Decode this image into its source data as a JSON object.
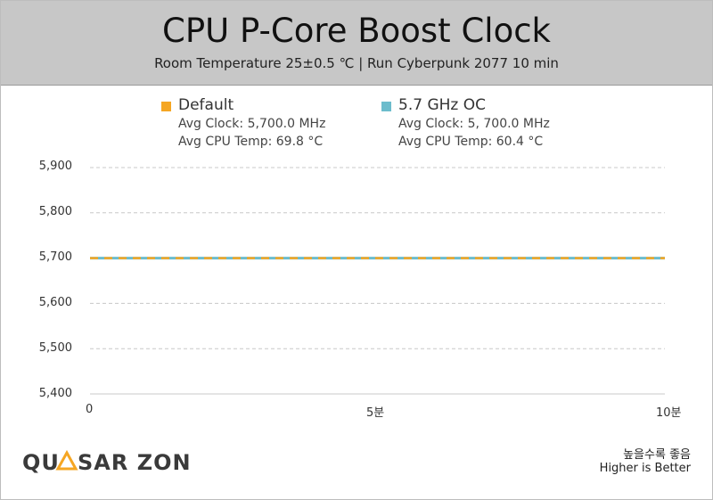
{
  "chart_data": {
    "type": "line",
    "title": "CPU P-Core Boost Clock",
    "subtitle": "Room Temperature 25±0.5 ℃  |  Run Cyberpunk 2077 10 min",
    "xlabel": "",
    "ylabel": "",
    "xlim": [
      0,
      10
    ],
    "ylim": [
      5400,
      5900
    ],
    "y_ticks": [
      "5,400",
      "5,500",
      "5,600",
      "5,700",
      "5,800",
      "5,900"
    ],
    "x_ticks": [
      {
        "value": 0,
        "label": "0"
      },
      {
        "value": 5,
        "label": "5분"
      },
      {
        "value": 10,
        "label": "10분"
      }
    ],
    "grid": "horizontal dashed",
    "series": [
      {
        "name": "Default",
        "color": "#f5a623",
        "avg_clock": "Avg Clock: 5,700.0 MHz",
        "avg_temp": "Avg CPU Temp: 69.8 °C",
        "x": [
          0,
          1,
          2,
          3,
          4,
          5,
          6,
          7,
          8,
          9,
          10
        ],
        "values": [
          5700,
          5700,
          5700,
          5700,
          5700,
          5700,
          5700,
          5700,
          5700,
          5700,
          5700
        ]
      },
      {
        "name": "5.7 GHz OC",
        "color": "#6cbccc",
        "avg_clock": "Avg Clock: 5, 700.0 MHz",
        "avg_temp": "Avg CPU Temp: 60.4 °C",
        "x": [
          0,
          1,
          2,
          3,
          4,
          5,
          6,
          7,
          8,
          9,
          10
        ],
        "values": [
          5700,
          5700,
          5700,
          5700,
          5700,
          5700,
          5700,
          5700,
          5700,
          5700,
          5700
        ]
      }
    ]
  },
  "footer": {
    "logo_text": "QUASAR ZONE",
    "note_korean": "높을수록 좋음",
    "note_english": "Higher is Better"
  }
}
